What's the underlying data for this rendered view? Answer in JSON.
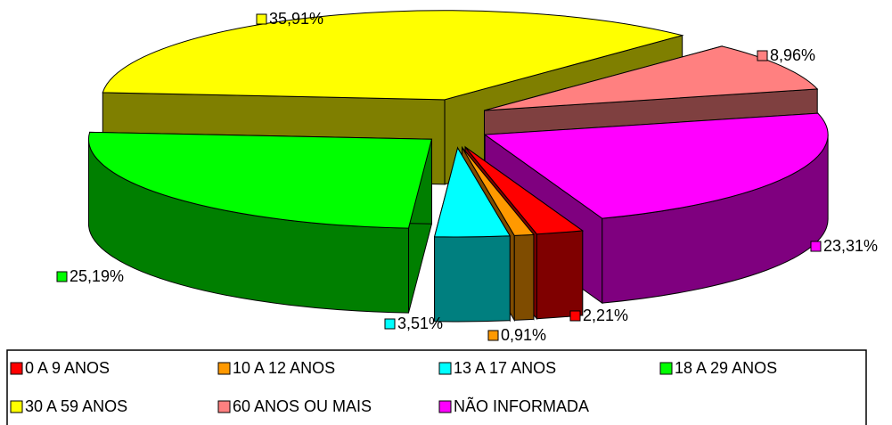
{
  "chart_data": {
    "type": "pie3d",
    "categories": [
      "0 A 9 ANOS",
      "10 A 12 ANOS",
      "13 A 17 ANOS",
      "18 A 29 ANOS",
      "30 A 59 ANOS",
      "60 ANOS OU MAIS",
      "NÃO INFORMADA"
    ],
    "values": [
      2.21,
      0.91,
      3.51,
      25.19,
      35.91,
      8.96,
      23.31
    ],
    "value_labels": [
      "2,21%",
      "0,91%",
      "3,51%",
      "25,19%",
      "35,91%",
      "8,96%",
      "23,31%"
    ],
    "colors": [
      "#ff0000",
      "#ff9900",
      "#00ffff",
      "#00ff00",
      "#ffff00",
      "#ff8080",
      "#ff00ff"
    ],
    "legend": "bottom"
  }
}
